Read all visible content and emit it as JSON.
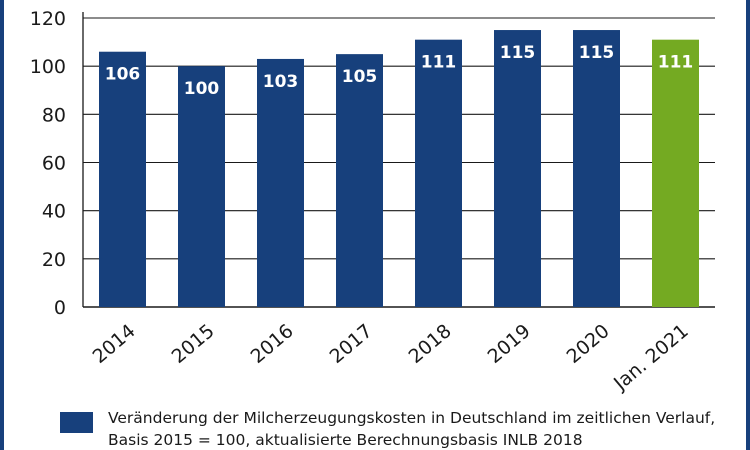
{
  "chart_data": {
    "type": "bar",
    "categories": [
      "2014",
      "2015",
      "2016",
      "2017",
      "2018",
      "2019",
      "2020",
      "Jan. 2021"
    ],
    "values": [
      106,
      100,
      103,
      105,
      111,
      115,
      115,
      111
    ],
    "data_labels": [
      "106",
      "100",
      "103",
      "105",
      "111",
      "115",
      "115",
      "111"
    ],
    "yticks": [
      0,
      20,
      40,
      60,
      80,
      100,
      120
    ],
    "ylim": [
      0,
      120
    ],
    "grid": true,
    "colors": {
      "bar": "#17407c",
      "highlight_bar": "#74aa22",
      "grid": "#1a1a1a",
      "frame": "#17407c"
    },
    "highlight_category": "Jan. 2021",
    "legend": {
      "placement": "bottom",
      "entries": [
        {
          "label": "Veränderung der Milcherzeugungskosten in Deutschland im zeitlichen Verlauf, Basis 2015 = 100, aktualisierte Berechnungsbasis INLB 2018",
          "color": "#17407c"
        }
      ]
    }
  }
}
